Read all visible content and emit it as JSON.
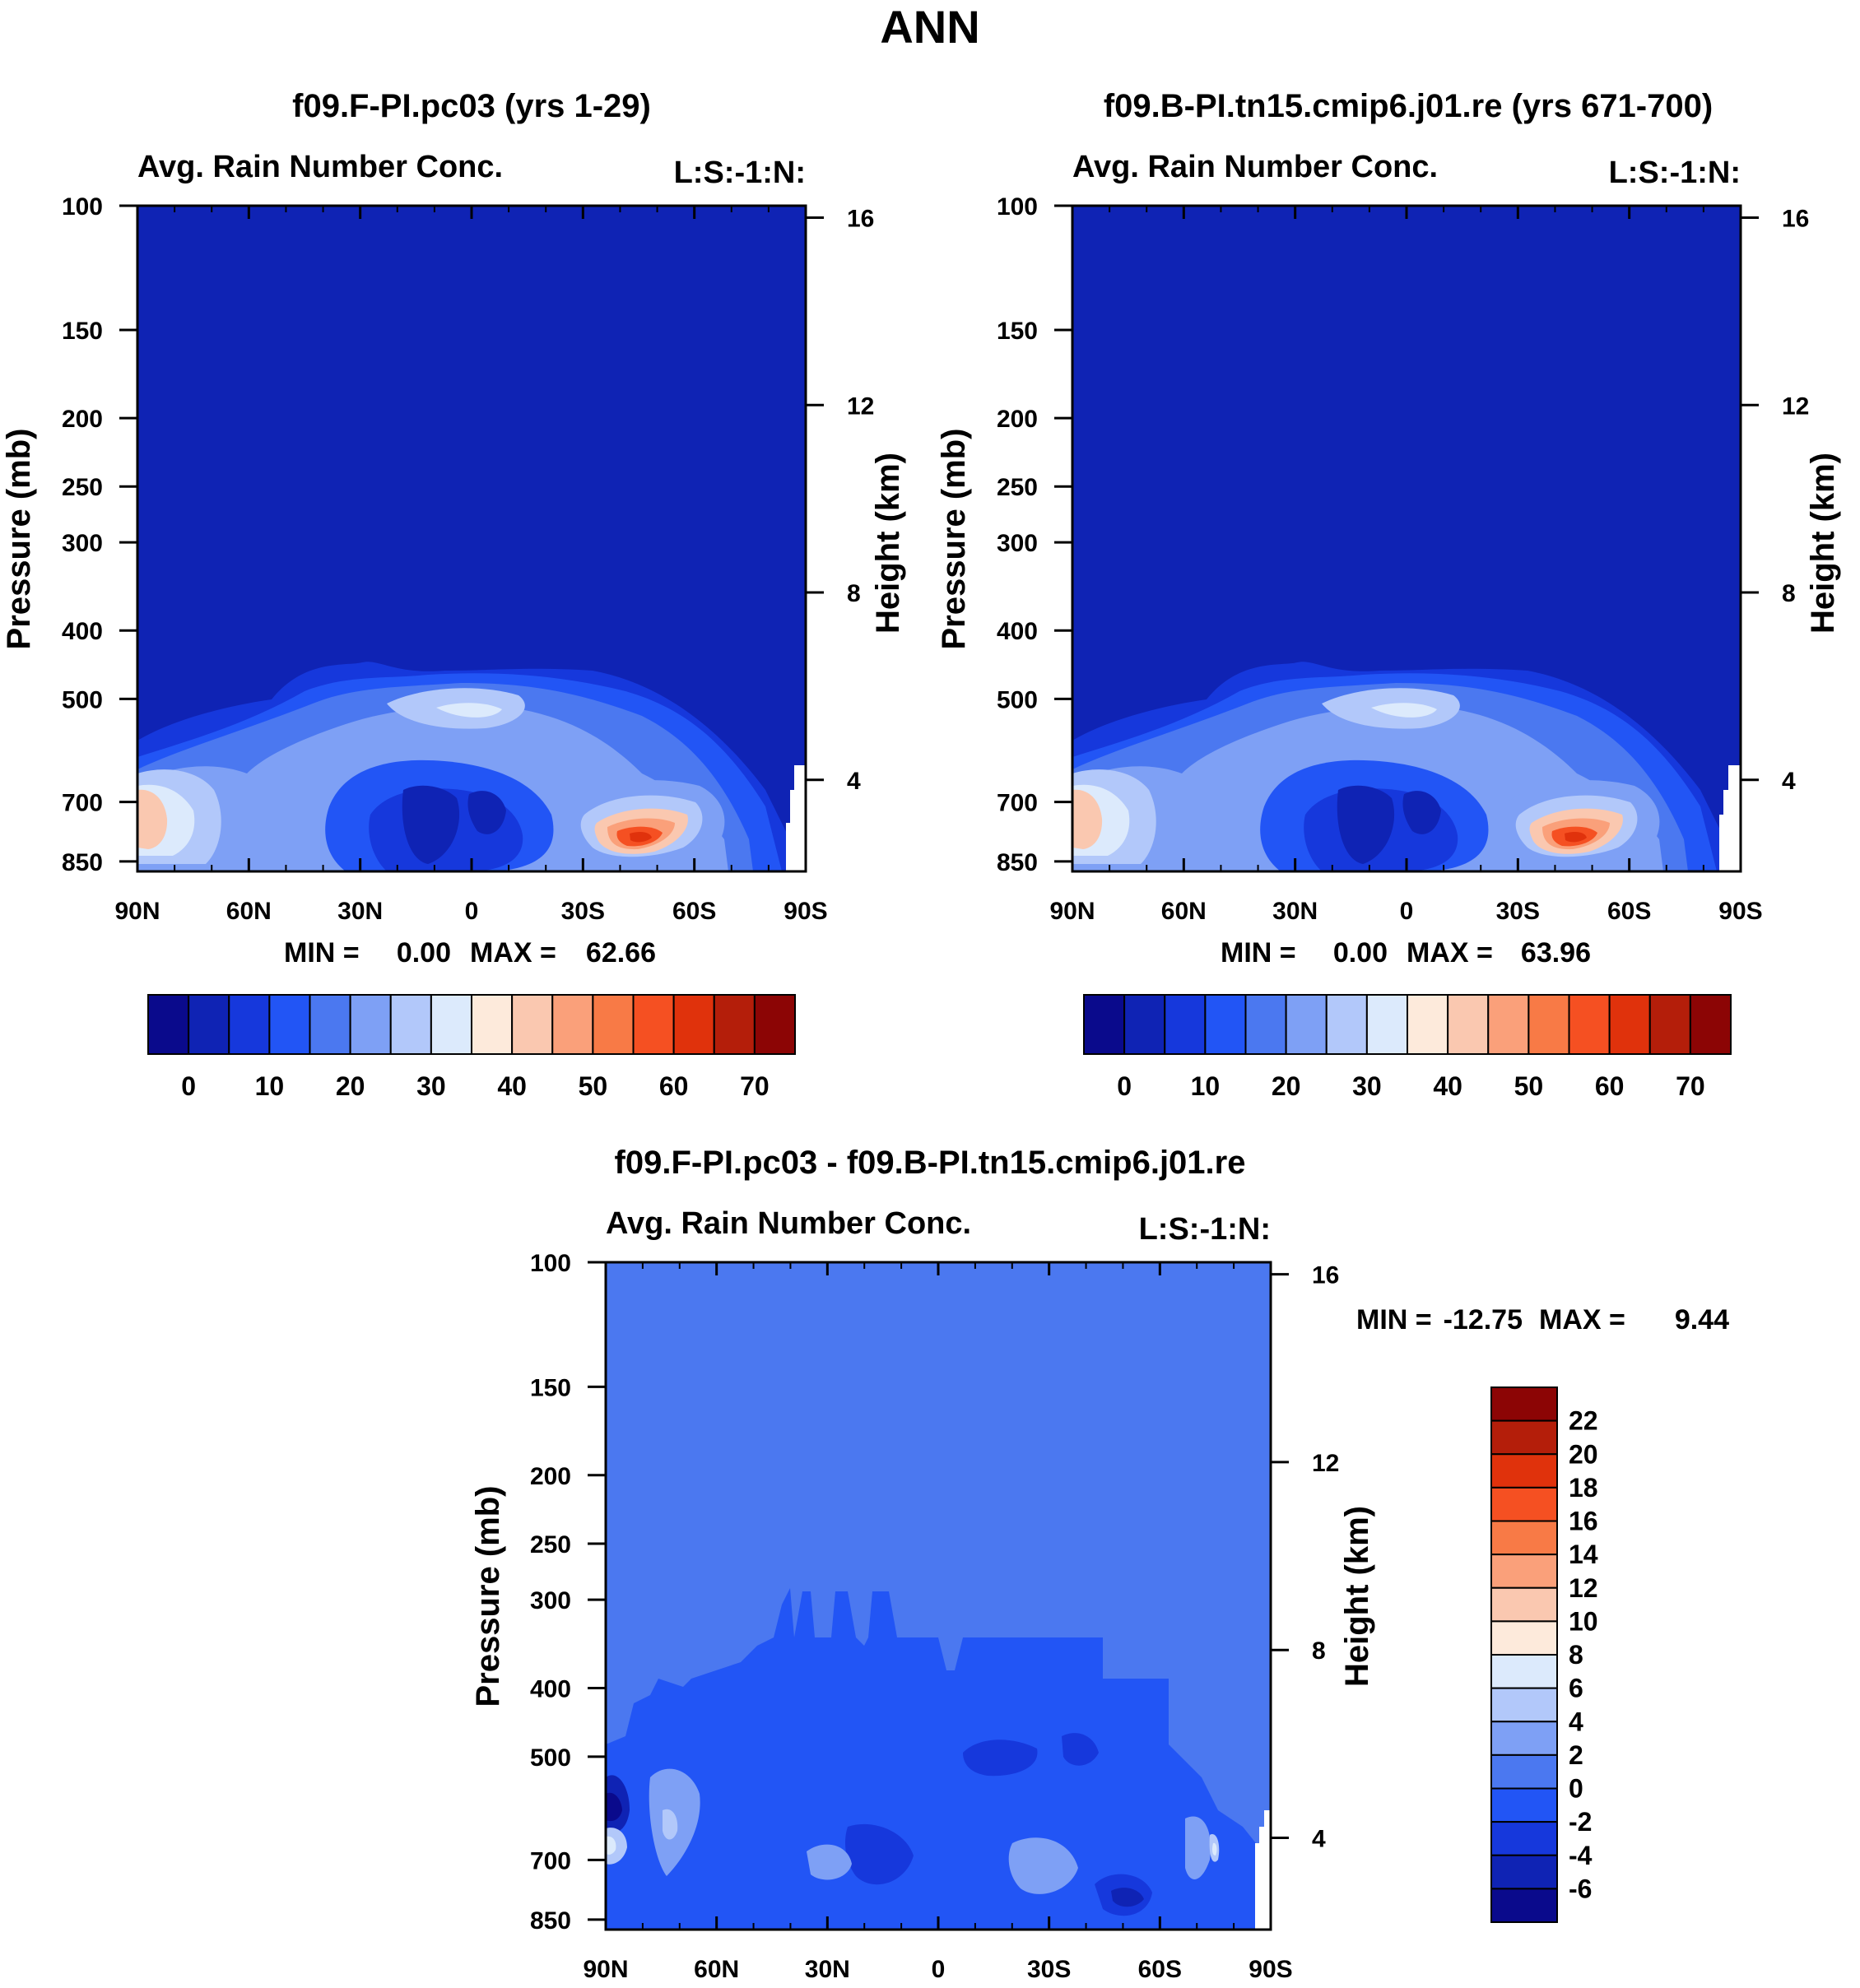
{
  "figure_title": "ANN",
  "contour_colors": [
    "#0a0a8c",
    "#0f23b4",
    "#1638dc",
    "#2255f5",
    "#4b78f0",
    "#7ea0f5",
    "#b2c8fa",
    "#dceafc",
    "#fdeadb",
    "#fac8b0",
    "#faa07a",
    "#f87a46",
    "#f55022",
    "#e0320c",
    "#b41e0a",
    "#8c0505"
  ],
  "chart_data": [
    {
      "type": "heatmap",
      "title": "f09.F-PI.pc03 (yrs 1-29)",
      "subtitle_left": "Avg. Rain Number Conc.",
      "subtitle_right": "L:S:-1:N:",
      "xlabel": "",
      "ylabel": "Pressure (mb)",
      "ylabel_right": "Height (km)",
      "x_ticks": [
        "90N",
        "60N",
        "30N",
        "0",
        "30S",
        "60S",
        "90S"
      ],
      "y_ticks": [
        "100",
        "150",
        "200",
        "250",
        "300",
        "400",
        "500",
        "700",
        "850"
      ],
      "y_values": [
        100,
        150,
        200,
        250,
        300,
        400,
        500,
        700,
        850
      ],
      "height_ticks": [
        "16",
        "12",
        "8",
        "4"
      ],
      "stats": {
        "min_label": "MIN =",
        "min": "0.00",
        "max_label": "MAX =",
        "max": "62.66"
      },
      "colorbar": {
        "orientation": "horizontal",
        "labels": [
          "0",
          "10",
          "20",
          "30",
          "40",
          "50",
          "60",
          "70"
        ]
      },
      "features": [
        {
          "desc": "maximum near 45S, 850 mb",
          "lat": -45,
          "p": 840,
          "value": 62
        }
      ]
    },
    {
      "type": "heatmap",
      "title": "f09.B-PI.tn15.cmip6.j01.re (yrs 671-700)",
      "subtitle_left": "Avg. Rain Number Conc.",
      "subtitle_right": "L:S:-1:N:",
      "xlabel": "",
      "ylabel": "Pressure (mb)",
      "ylabel_right": "Height (km)",
      "x_ticks": [
        "90N",
        "60N",
        "30N",
        "0",
        "30S",
        "60S",
        "90S"
      ],
      "y_ticks": [
        "100",
        "150",
        "200",
        "250",
        "300",
        "400",
        "500",
        "700",
        "850"
      ],
      "height_ticks": [
        "16",
        "12",
        "8",
        "4"
      ],
      "stats": {
        "min_label": "MIN =",
        "min": "0.00",
        "max_label": "MAX =",
        "max": "63.96"
      },
      "colorbar": {
        "orientation": "horizontal",
        "labels": [
          "0",
          "10",
          "20",
          "30",
          "40",
          "50",
          "60",
          "70"
        ]
      },
      "features": [
        {
          "desc": "maximum near 45S, 850 mb",
          "lat": -45,
          "p": 840,
          "value": 63
        }
      ]
    },
    {
      "type": "heatmap",
      "title": "f09.F-PI.pc03 - f09.B-PI.tn15.cmip6.j01.re",
      "subtitle_left": "Avg. Rain Number Conc.",
      "subtitle_right": "L:S:-1:N:",
      "xlabel": "",
      "ylabel": "Pressure (mb)",
      "ylabel_right": "Height (km)",
      "x_ticks": [
        "90N",
        "60N",
        "30N",
        "0",
        "30S",
        "60S",
        "90S"
      ],
      "y_ticks": [
        "100",
        "150",
        "200",
        "250",
        "300",
        "400",
        "500",
        "700",
        "850"
      ],
      "height_ticks": [
        "16",
        "12",
        "8",
        "4"
      ],
      "stats": {
        "min_label": "MIN =",
        "min": "-12.75",
        "max_label": "MAX =",
        "max": "9.44"
      },
      "colorbar": {
        "orientation": "vertical",
        "labels": [
          "22",
          "20",
          "18",
          "16",
          "14",
          "12",
          "10",
          "8",
          "6",
          "4",
          "2",
          "0",
          "-2",
          "-4",
          "-6"
        ]
      }
    }
  ]
}
